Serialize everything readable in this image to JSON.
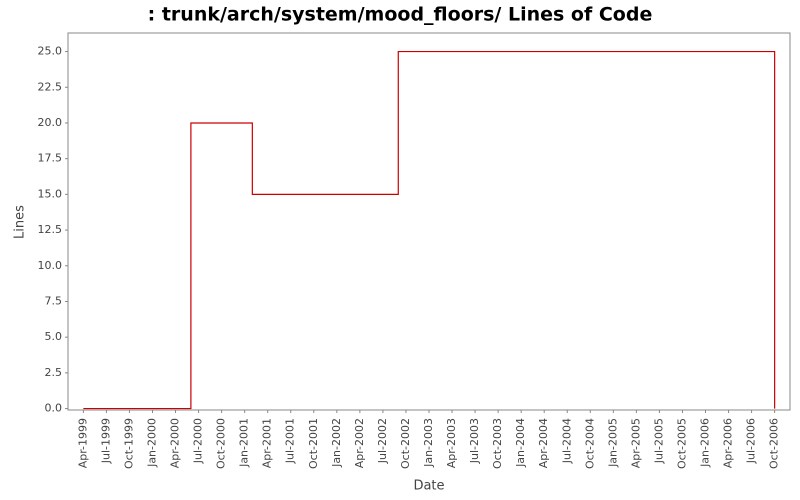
{
  "chart_data": {
    "type": "line",
    "step": "post",
    "title": ": trunk/arch/system/mood_floors/ Lines of Code",
    "x_label": "Date",
    "y_label": "Lines",
    "x": [
      "1999-04",
      "2000-06",
      "2001-02",
      "2002-09",
      "2006-10"
    ],
    "series": [
      {
        "name": "Lines",
        "color": "#cc0000",
        "values": [
          0,
          20,
          15,
          25,
          0
        ]
      }
    ],
    "xlim": [
      "1999-02",
      "2006-12"
    ],
    "xticks": [
      {
        "value": "1999-04",
        "label": "Apr-1999"
      },
      {
        "value": "1999-07",
        "label": "Jul-1999"
      },
      {
        "value": "1999-10",
        "label": "Oct-1999"
      },
      {
        "value": "2000-01",
        "label": "Jan-2000"
      },
      {
        "value": "2000-04",
        "label": "Apr-2000"
      },
      {
        "value": "2000-07",
        "label": "Jul-2000"
      },
      {
        "value": "2000-10",
        "label": "Oct-2000"
      },
      {
        "value": "2001-01",
        "label": "Jan-2001"
      },
      {
        "value": "2001-04",
        "label": "Apr-2001"
      },
      {
        "value": "2001-07",
        "label": "Jul-2001"
      },
      {
        "value": "2001-10",
        "label": "Oct-2001"
      },
      {
        "value": "2002-01",
        "label": "Jan-2002"
      },
      {
        "value": "2002-04",
        "label": "Apr-2002"
      },
      {
        "value": "2002-07",
        "label": "Jul-2002"
      },
      {
        "value": "2002-10",
        "label": "Oct-2002"
      },
      {
        "value": "2003-01",
        "label": "Jan-2003"
      },
      {
        "value": "2003-04",
        "label": "Apr-2003"
      },
      {
        "value": "2003-07",
        "label": "Jul-2003"
      },
      {
        "value": "2003-10",
        "label": "Oct-2003"
      },
      {
        "value": "2004-01",
        "label": "Jan-2004"
      },
      {
        "value": "2004-04",
        "label": "Apr-2004"
      },
      {
        "value": "2004-07",
        "label": "Jul-2004"
      },
      {
        "value": "2004-10",
        "label": "Oct-2004"
      },
      {
        "value": "2005-01",
        "label": "Jan-2005"
      },
      {
        "value": "2005-04",
        "label": "Apr-2005"
      },
      {
        "value": "2005-07",
        "label": "Jul-2005"
      },
      {
        "value": "2005-10",
        "label": "Oct-2005"
      },
      {
        "value": "2006-01",
        "label": "Jan-2006"
      },
      {
        "value": "2006-04",
        "label": "Apr-2006"
      },
      {
        "value": "2006-07",
        "label": "Jul-2006"
      },
      {
        "value": "2006-10",
        "label": "Oct-2006"
      }
    ],
    "ylim": [
      -0.1,
      26.3
    ],
    "yticks": [
      {
        "value": 0,
        "label": "0.0"
      },
      2.5,
      {
        "value": 5,
        "label": "5.0"
      },
      7.5,
      {
        "value": 10,
        "label": "10.0"
      },
      12.5,
      {
        "value": 15,
        "label": "15.0"
      },
      17.5,
      {
        "value": 20,
        "label": "20.0"
      },
      22.5,
      {
        "value": 25,
        "label": "25.0"
      }
    ],
    "grid": false
  }
}
